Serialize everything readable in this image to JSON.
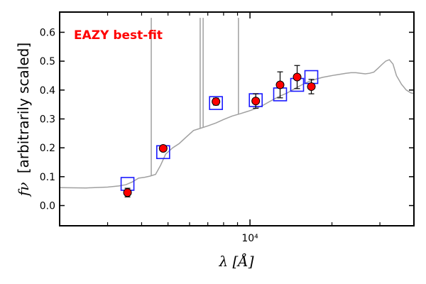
{
  "chart_data": {
    "type": "scatter",
    "annotation": "EAZY best-fit",
    "xlabel": "λ [Å]",
    "ylabel_symbol": "fν",
    "ylabel_text": "[arbitrarily scaled]",
    "xscale": "log",
    "xlim": [
      2000,
      40000
    ],
    "ylim": [
      -0.07,
      0.67
    ],
    "yticks": [
      0.0,
      0.1,
      0.2,
      0.3,
      0.4,
      0.5,
      0.6
    ],
    "ytick_labels": [
      "0.0",
      "0.1",
      "0.2",
      "0.3",
      "0.4",
      "0.5",
      "0.6"
    ],
    "xtick_major": [
      10000
    ],
    "xtick_major_labels": [
      "10⁴"
    ],
    "grid": false,
    "colors": {
      "template": "#a0a0a0",
      "model_box": "#1a1aff",
      "observed": "#ff0000",
      "errorbar": "#000000",
      "annotation": "#ff0000"
    },
    "series": [
      {
        "kind": "template_spectrum",
        "x": [
          2000,
          2500,
          3000,
          3300,
          3500,
          3700,
          3900,
          4100,
          4300,
          4500,
          4700,
          4900,
          5200,
          5500,
          5800,
          6200,
          6600,
          7000,
          7500,
          8000,
          8600,
          9200,
          9800,
          10500,
          11200,
          12000,
          12800,
          13700,
          14600,
          15500,
          16500,
          17500,
          18500,
          19500,
          20500,
          21500,
          22500,
          23500,
          24500,
          25500,
          26500,
          27500,
          28500,
          29500,
          30500,
          31500,
          32500,
          33500,
          34500,
          36000,
          37500,
          39000,
          40000
        ],
        "y": [
          0.062,
          0.061,
          0.064,
          0.068,
          0.072,
          0.082,
          0.095,
          0.098,
          0.102,
          0.108,
          0.14,
          0.178,
          0.2,
          0.215,
          0.235,
          0.26,
          0.268,
          0.276,
          0.286,
          0.298,
          0.31,
          0.318,
          0.326,
          0.336,
          0.348,
          0.364,
          0.378,
          0.39,
          0.405,
          0.418,
          0.43,
          0.438,
          0.444,
          0.448,
          0.452,
          0.455,
          0.458,
          0.46,
          0.46,
          0.458,
          0.456,
          0.458,
          0.462,
          0.475,
          0.488,
          0.5,
          0.505,
          0.49,
          0.45,
          0.42,
          0.4,
          0.39,
          0.388
        ]
      },
      {
        "kind": "emission_lines",
        "x": [
          4340,
          6563,
          6730,
          9070
        ],
        "top": [
          0.65,
          0.65,
          0.65,
          0.65
        ]
      },
      {
        "kind": "model_fluxes",
        "x": [
          3550,
          4800,
          7500,
          10500,
          12900,
          14900,
          16800
        ],
        "y": [
          0.075,
          0.185,
          0.355,
          0.365,
          0.385,
          0.418,
          0.445
        ]
      },
      {
        "kind": "observed_fluxes",
        "x": [
          3550,
          4800,
          7500,
          10500,
          12900,
          14900,
          16800
        ],
        "y": [
          0.045,
          0.198,
          0.36,
          0.362,
          0.418,
          0.445,
          0.412
        ],
        "yerr": [
          0.015,
          0.008,
          0.012,
          0.025,
          0.045,
          0.04,
          0.025
        ]
      }
    ]
  }
}
